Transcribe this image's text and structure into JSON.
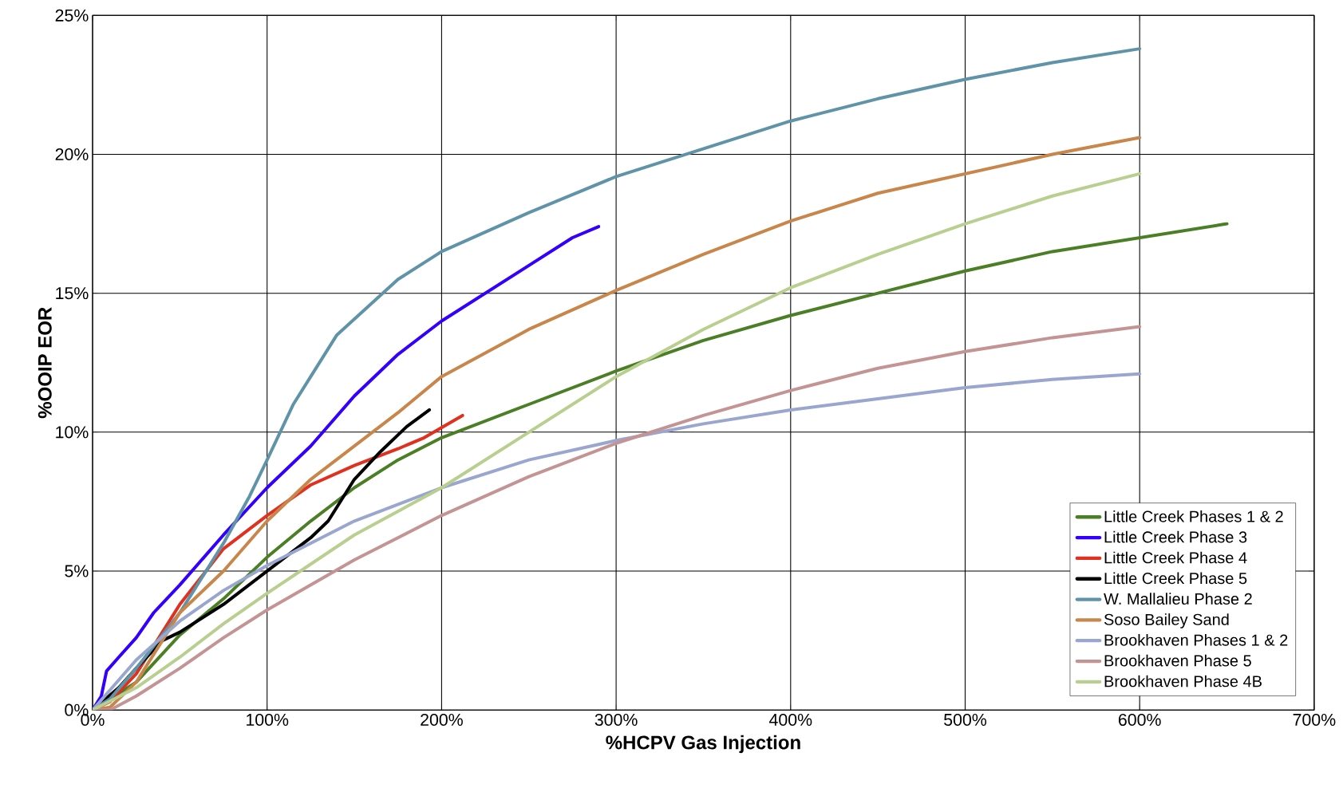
{
  "chart_data": {
    "type": "line",
    "xlabel": "%HCPV Gas Injection",
    "ylabel": "%OOIP EOR",
    "xlim": [
      0,
      700
    ],
    "ylim": [
      0,
      25
    ],
    "xticks": [
      {
        "value": 0,
        "label": "0%"
      },
      {
        "value": 100,
        "label": "100%"
      },
      {
        "value": 200,
        "label": "200%"
      },
      {
        "value": 300,
        "label": "300%"
      },
      {
        "value": 400,
        "label": "400%"
      },
      {
        "value": 500,
        "label": "500%"
      },
      {
        "value": 600,
        "label": "600%"
      },
      {
        "value": 700,
        "label": "700%"
      }
    ],
    "yticks": [
      {
        "value": 0,
        "label": "0%"
      },
      {
        "value": 5,
        "label": "5%"
      },
      {
        "value": 10,
        "label": "10%"
      },
      {
        "value": 15,
        "label": "15%"
      },
      {
        "value": 20,
        "label": "20%"
      },
      {
        "value": 25,
        "label": "25%"
      }
    ],
    "grid": true,
    "legend": "bottom right",
    "marker": "none",
    "line_style": "solid",
    "series": [
      {
        "name": "Little Creek Phases 1 & 2",
        "color": "#4a7f25",
        "x": [
          0,
          25,
          50,
          75,
          100,
          125,
          150,
          175,
          200,
          250,
          300,
          350,
          400,
          450,
          500,
          550,
          600,
          650
        ],
        "values": [
          0,
          1,
          2.7,
          4,
          5.5,
          6.8,
          8,
          9,
          9.8,
          11,
          12.2,
          13.3,
          14.2,
          15,
          15.8,
          16.5,
          17,
          17.5
        ]
      },
      {
        "name": "Little Creek Phase 3",
        "color": "#3300ff",
        "x": [
          0,
          5,
          8,
          15,
          25,
          35,
          50,
          75,
          100,
          125,
          150,
          175,
          200,
          225,
          250,
          275,
          290
        ],
        "values": [
          0,
          0.5,
          1.4,
          1.9,
          2.6,
          3.5,
          4.5,
          6.3,
          8,
          9.5,
          11.3,
          12.8,
          14,
          15,
          16,
          17,
          17.4
        ]
      },
      {
        "name": "Little Creek Phase 4",
        "color": "#e03020",
        "x": [
          0,
          10,
          25,
          40,
          50,
          75,
          100,
          125,
          150,
          175,
          190,
          212
        ],
        "values": [
          0,
          0.3,
          1.3,
          2.8,
          3.8,
          5.8,
          7,
          8.1,
          8.8,
          9.4,
          9.8,
          10.6
        ]
      },
      {
        "name": "Little Creek Phase 5",
        "color": "#000000",
        "x": [
          0,
          15,
          25,
          40,
          50,
          75,
          100,
          125,
          135,
          150,
          165,
          180,
          193
        ],
        "values": [
          0,
          0.8,
          1.5,
          2.5,
          2.8,
          3.8,
          5,
          6.2,
          6.8,
          8.3,
          9.3,
          10.2,
          10.8
        ]
      },
      {
        "name": "W. Mallalieu Phase 2",
        "color": "#5f93a8",
        "x": [
          0,
          10,
          25,
          50,
          75,
          90,
          100,
          115,
          125,
          140,
          175,
          200,
          250,
          300,
          350,
          400,
          450,
          500,
          550,
          600
        ],
        "values": [
          0,
          0.4,
          1.5,
          3.5,
          6,
          7.7,
          9,
          11,
          12,
          13.5,
          15.5,
          16.5,
          17.9,
          19.2,
          20.2,
          21.2,
          22,
          22.7,
          23.3,
          23.8
        ]
      },
      {
        "name": "Soso Bailey Sand",
        "color": "#c8864a",
        "x": [
          0,
          10,
          25,
          50,
          75,
          100,
          125,
          150,
          175,
          200,
          250,
          300,
          350,
          400,
          450,
          500,
          550,
          600
        ],
        "values": [
          0,
          0.1,
          1,
          3.5,
          5,
          6.8,
          8.3,
          9.5,
          10.7,
          12,
          13.7,
          15.1,
          16.4,
          17.6,
          18.6,
          19.3,
          20,
          20.6
        ]
      },
      {
        "name": "Brookhaven Phases 1 & 2",
        "color": "#99a6cf",
        "x": [
          0,
          25,
          50,
          75,
          100,
          150,
          200,
          250,
          300,
          350,
          400,
          450,
          500,
          550,
          600
        ],
        "values": [
          0,
          1.8,
          3.2,
          4.3,
          5.2,
          6.8,
          8,
          9,
          9.7,
          10.3,
          10.8,
          11.2,
          11.6,
          11.9,
          12.1
        ]
      },
      {
        "name": "Brookhaven Phase 5",
        "color": "#c49494",
        "x": [
          0,
          10,
          25,
          50,
          75,
          100,
          150,
          200,
          250,
          300,
          350,
          400,
          450,
          500,
          550,
          600
        ],
        "values": [
          0,
          0,
          0.5,
          1.5,
          2.6,
          3.6,
          5.4,
          7,
          8.4,
          9.6,
          10.6,
          11.5,
          12.3,
          12.9,
          13.4,
          13.8
        ]
      },
      {
        "name": "Brookhaven Phase 4B",
        "color": "#b9cf8f",
        "x": [
          0,
          25,
          50,
          75,
          100,
          150,
          200,
          250,
          300,
          350,
          400,
          450,
          500,
          550,
          600
        ],
        "values": [
          0,
          0.8,
          1.9,
          3.1,
          4.2,
          6.3,
          8,
          10,
          12,
          13.7,
          15.2,
          16.4,
          17.5,
          18.5,
          19.3
        ]
      }
    ]
  }
}
